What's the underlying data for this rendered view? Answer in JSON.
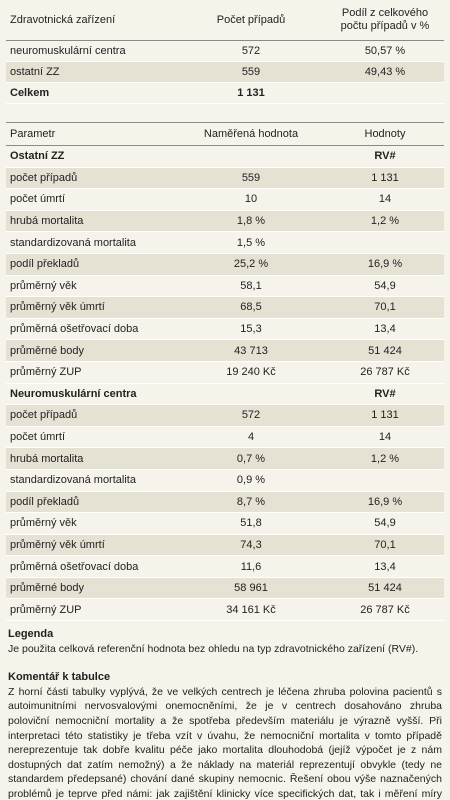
{
  "table1": {
    "header": [
      "Zdravotnická zařízení",
      "Počet případů",
      "Podíl z celkového počtu případů v %"
    ],
    "rows": [
      [
        "neuromuskulární centra",
        "572",
        "50,57 %"
      ],
      [
        "ostatní ZZ",
        "559",
        "49,43 %"
      ],
      [
        "Celkem",
        "1 131"
      ]
    ]
  },
  "table2": {
    "header": [
      "Parametr",
      "Naměřená hodnota",
      "Hodnoty"
    ],
    "sections": [
      {
        "title": "Ostatní ZZ",
        "ref": "RV#",
        "rows": [
          [
            "počet případů",
            "559",
            "1 131"
          ],
          [
            "počet úmrtí",
            "10",
            "14"
          ],
          [
            "hrubá mortalita",
            "1,8 %",
            "1,2 %"
          ],
          [
            "standardizovaná mortalita",
            "1,5 %"
          ],
          [
            "podíl překladů",
            "25,2 %",
            "16,9 %"
          ],
          [
            "průměrný věk",
            "58,1",
            "54,9"
          ],
          [
            "průměrný věk úmrtí",
            "68,5",
            "70,1"
          ],
          [
            "průměrná ošetřovací doba",
            "15,3",
            "13,4"
          ],
          [
            "průměrné body",
            "43 713",
            "51 424"
          ],
          [
            "průměrný ZUP",
            "19 240 Kč",
            "26 787 Kč"
          ]
        ]
      },
      {
        "title": "Neuromuskulární centra",
        "ref": "RV#",
        "rows": [
          [
            "počet případů",
            "572",
            "1 131"
          ],
          [
            "počet úmrtí",
            "4",
            "14"
          ],
          [
            "hrubá mortalita",
            "0,7 %",
            "1,2 %"
          ],
          [
            "standardizovaná mortalita",
            "0,9 %"
          ],
          [
            "podíl překladů",
            "8,7 %",
            "16,9 %"
          ],
          [
            "průměrný věk",
            "51,8",
            "54,9"
          ],
          [
            "průměrný věk úmrtí",
            "74,3",
            "70,1"
          ],
          [
            "průměrná ošetřovací doba",
            "11,6",
            "13,4"
          ],
          [
            "průměrné body",
            "58 961",
            "51 424"
          ],
          [
            "průměrný ZUP",
            "34 161 Kč",
            "26 787 Kč"
          ]
        ]
      }
    ]
  },
  "legend": {
    "title": "Legenda",
    "text": "Je použita celková referenční hodnota bez ohledu na typ zdravotnického zařízení (RV#)."
  },
  "comment": {
    "title": "Komentář k tabulce",
    "text": "Z horní části tabulky vyplývá, že ve velkých centrech je léčena zhruba polovina pacientů s autoimunitními nervosvalovými onemocněními, že je v centrech dosahováno zhruba poloviční nemocniční mortality a že spotřeba především materiálu je výrazně vyšší. Při interpretaci této statistiky je třeba vzít v úvahu, že nemocniční mortalita v tomto případě nereprezentuje tak dobře kvalitu péče jako mortalita dlouhodobá (jejíž výpočet je z nám dostupných dat zatím nemožný) a že náklady na materiál reprezentují obvykle (tedy ne standardem předepsané) chování dané skupiny nemocnic. Řešení obou výše naznačených problémů je teprve před námi: jak zajištění klinicky více specifických dat, tak i měření míry naplnění standardem předepsaných doporučení."
  }
}
